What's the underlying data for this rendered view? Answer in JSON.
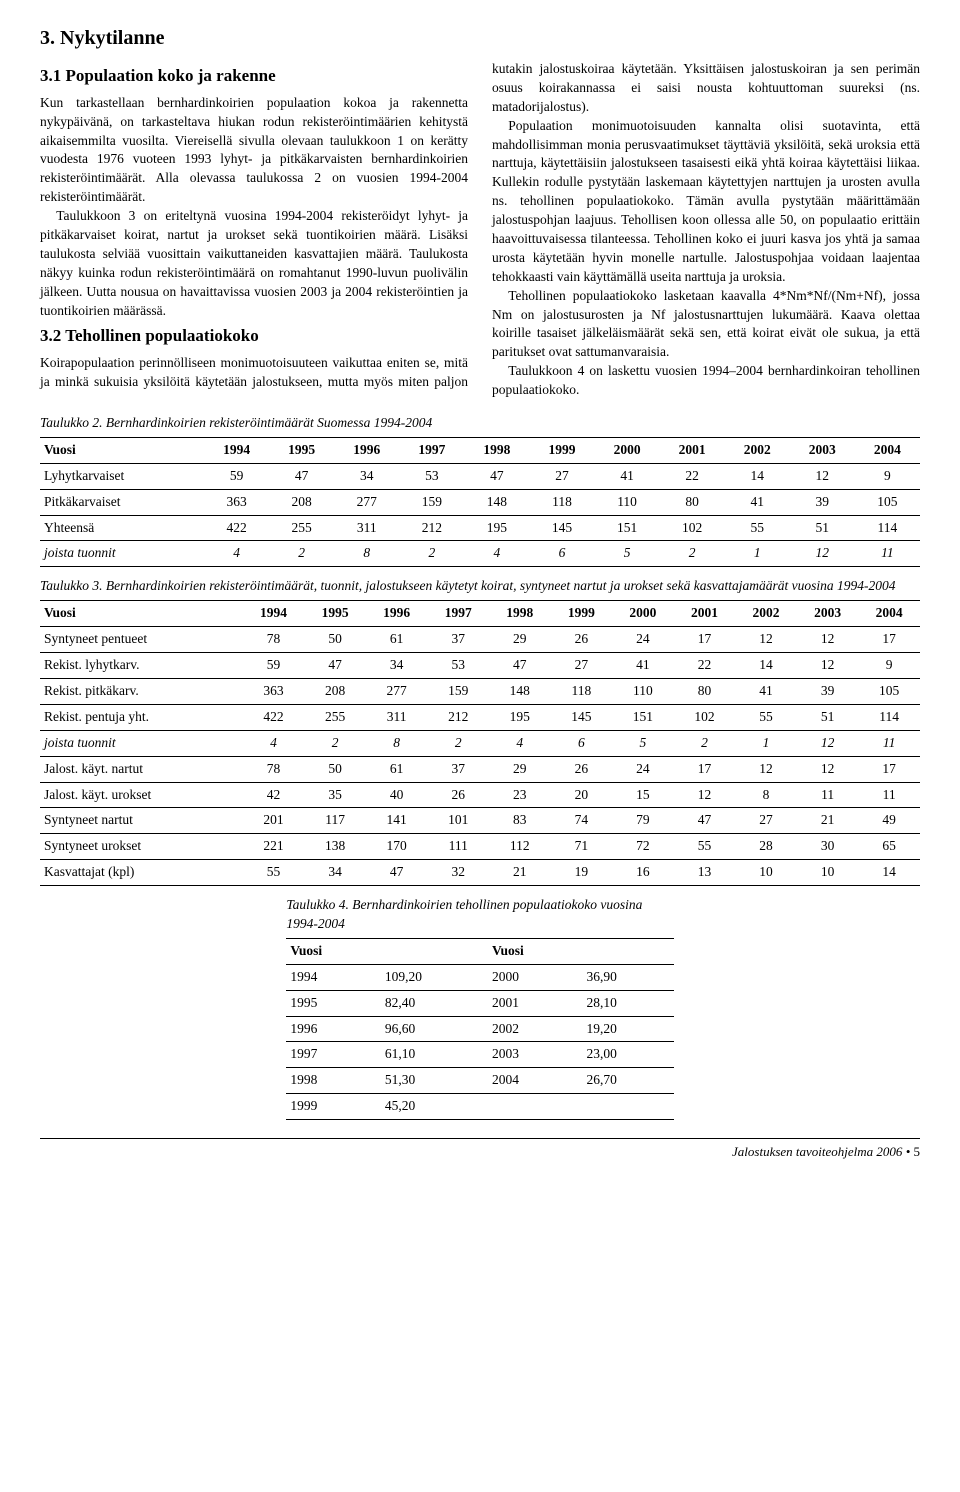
{
  "h2": "3. Nykytilanne",
  "h3a": "3.1 Populaation koko ja rakenne",
  "h3b": "3.2 Tehollinen populaatiokoko",
  "paragraphs": {
    "p1": "Kun tarkastellaan bernhardinkoirien populaation kokoa ja rakennetta nykypäivänä, on tarkasteltava hiukan rodun rekisteröintimäärien kehitystä aikaisemmilta vuosilta. Viereisellä sivulla olevaan taulukkoon 1 on kerätty vuodesta 1976 vuoteen 1993 lyhyt- ja pitkäkarvaisten bernhardinkoirien rekisteröintimäärät. Alla olevassa taulukossa 2 on vuosien 1994-2004 rekisteröintimäärät.",
    "p2": "Taulukkoon 3 on eriteltynä vuosina 1994-2004 rekisteröidyt lyhyt- ja pitkäkarvaiset koirat, nartut ja urokset sekä tuontikoirien määrä. Lisäksi taulukosta selviää vuosittain vaikuttaneiden kasvattajien määrä. Taulukosta näkyy kuinka rodun rekisteröintimäärä on romahtanut 1990-luvun puolivälin jälkeen. Uutta nousua on havaittavissa vuosien 2003 ja 2004 rekisteröintien ja tuontikoirien määrässä.",
    "p3": "Koirapopulaation perinnölliseen monimuotoisuuteen vaikuttaa eniten se, mitä ja minkä sukuisia yksilöitä käytetään jalostukseen, mutta myös miten paljon kutakin jalostuskoiraa käytetään. Yksittäisen jalostuskoiran ja sen perimän osuus koirakannassa ei saisi nousta kohtuuttoman suureksi (ns. matadorijalostus).",
    "p4": "Populaation monimuotoisuuden kannalta olisi suotavinta, että mahdollisimman monia perusvaatimukset täyttäviä yksilöitä, sekä uroksia että narttuja, käytettäisiin jalostukseen tasaisesti eikä yhtä koiraa käytettäisi liikaa. Kullekin rodulle pystytään laskemaan käytettyjen narttujen ja urosten avulla ns. tehollinen populaatiokoko. Tämän avulla pystytään määrittämään jalostuspohjan laajuus. Tehollisen koon ollessa alle 50, on populaatio erittäin haavoittuvaisessa tilanteessa. Tehollinen koko ei juuri kasva jos yhtä ja samaa urosta käytetään hyvin monelle nartulle. Jalostuspohjaa voidaan laajentaa tehokkaasti vain käyttämällä useita narttuja ja uroksia.",
    "p5": "Tehollinen populaatiokoko lasketaan kaavalla 4*Nm*Nf/(Nm+Nf), jossa Nm on jalostusurosten ja Nf jalostusnarttujen lukumäärä. Kaava olettaa koirille tasaiset jälkeläismäärät sekä sen, että koirat eivät ole sukua, ja että paritukset ovat sattumanvaraisia.",
    "p6": "Taulukkoon 4 on laskettu vuosien 1994–2004 bernhardinkoiran tehollinen populaatiokoko."
  },
  "table2": {
    "caption": "Taulukko 2.\nBernhardinkoirien rekisteröintimäärät Suomessa 1994-2004",
    "header": [
      "Vuosi",
      "1994",
      "1995",
      "1996",
      "1997",
      "1998",
      "1999",
      "2000",
      "2001",
      "2002",
      "2003",
      "2004"
    ],
    "rows": [
      {
        "label": "Lyhytkarvaiset",
        "v": [
          "59",
          "47",
          "34",
          "53",
          "47",
          "27",
          "41",
          "22",
          "14",
          "12",
          "9"
        ]
      },
      {
        "label": "Pitkäkarvaiset",
        "v": [
          "363",
          "208",
          "277",
          "159",
          "148",
          "118",
          "110",
          "80",
          "41",
          "39",
          "105"
        ]
      },
      {
        "label": "Yhteensä",
        "v": [
          "422",
          "255",
          "311",
          "212",
          "195",
          "145",
          "151",
          "102",
          "55",
          "51",
          "114"
        ]
      },
      {
        "label": "joista tuonnit",
        "v": [
          "4",
          "2",
          "8",
          "2",
          "4",
          "6",
          "5",
          "2",
          "1",
          "12",
          "11"
        ],
        "ital": true
      }
    ]
  },
  "table3": {
    "caption": "Taulukko 3. Bernhardinkoirien rekisteröintimäärät, tuonnit, jalostukseen käytetyt koirat, syntyneet nartut ja urokset sekä kasvattajamäärät vuosina 1994-2004",
    "header": [
      "Vuosi",
      "1994",
      "1995",
      "1996",
      "1997",
      "1998",
      "1999",
      "2000",
      "2001",
      "2002",
      "2003",
      "2004"
    ],
    "rows": [
      {
        "label": "Syntyneet pentueet",
        "v": [
          "78",
          "50",
          "61",
          "37",
          "29",
          "26",
          "24",
          "17",
          "12",
          "12",
          "17"
        ]
      },
      {
        "label": "Rekist. lyhytkarv.",
        "v": [
          "59",
          "47",
          "34",
          "53",
          "47",
          "27",
          "41",
          "22",
          "14",
          "12",
          "9"
        ]
      },
      {
        "label": "Rekist. pitkäkarv.",
        "v": [
          "363",
          "208",
          "277",
          "159",
          "148",
          "118",
          "110",
          "80",
          "41",
          "39",
          "105"
        ]
      },
      {
        "label": "Rekist. pentuja yht.",
        "v": [
          "422",
          "255",
          "311",
          "212",
          "195",
          "145",
          "151",
          "102",
          "55",
          "51",
          "114"
        ]
      },
      {
        "label": "joista tuonnit",
        "v": [
          "4",
          "2",
          "8",
          "2",
          "4",
          "6",
          "5",
          "2",
          "1",
          "12",
          "11"
        ],
        "ital": true
      },
      {
        "label": "Jalost. käyt. nartut",
        "v": [
          "78",
          "50",
          "61",
          "37",
          "29",
          "26",
          "24",
          "17",
          "12",
          "12",
          "17"
        ]
      },
      {
        "label": "Jalost. käyt. urokset",
        "v": [
          "42",
          "35",
          "40",
          "26",
          "23",
          "20",
          "15",
          "12",
          "8",
          "11",
          "11"
        ]
      },
      {
        "label": "Syntyneet nartut",
        "v": [
          "201",
          "117",
          "141",
          "101",
          "83",
          "74",
          "79",
          "47",
          "27",
          "21",
          "49"
        ]
      },
      {
        "label": "Syntyneet urokset",
        "v": [
          "221",
          "138",
          "170",
          "111",
          "112",
          "71",
          "72",
          "55",
          "28",
          "30",
          "65"
        ]
      },
      {
        "label": "Kasvattajat (kpl)",
        "v": [
          "55",
          "34",
          "47",
          "32",
          "21",
          "19",
          "16",
          "13",
          "10",
          "10",
          "14"
        ]
      }
    ]
  },
  "table4": {
    "caption": "Taulukko 4. Bernhardinkoirien tehollinen populaatiokoko vuosina 1994-2004",
    "header": [
      "Vuosi",
      "",
      "Vuosi",
      ""
    ],
    "rows": [
      [
        "1994",
        "109,20",
        "2000",
        "36,90"
      ],
      [
        "1995",
        "82,40",
        "2001",
        "28,10"
      ],
      [
        "1996",
        "96,60",
        "2002",
        "19,20"
      ],
      [
        "1997",
        "61,10",
        "2003",
        "23,00"
      ],
      [
        "1998",
        "51,30",
        "2004",
        "26,70"
      ],
      [
        "1999",
        "45,20",
        "",
        ""
      ]
    ]
  },
  "footer": {
    "text": "Jalostuksen tavoiteohjelma 2006",
    "bullet": " • ",
    "page": "5"
  }
}
